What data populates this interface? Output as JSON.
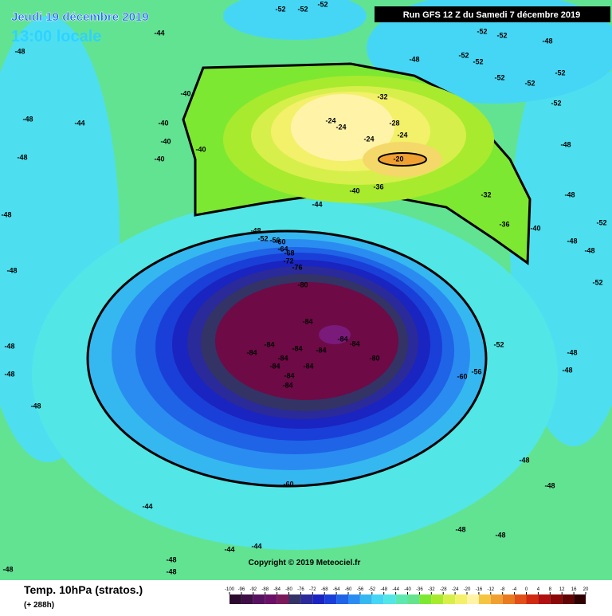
{
  "header": {
    "date": "Jeudi 19 décembre 2019",
    "time": "13:00 locale",
    "run": "Run GFS 12 Z du Samedi 7 décembre 2019"
  },
  "copyright": "Copyright © 2019 Meteociel.fr",
  "footer": {
    "field": "Temp. 10hPa (stratos.)",
    "lead": "(+ 288h)"
  },
  "colorbar": {
    "ticks": [
      -100,
      -96,
      -92,
      -88,
      -84,
      -80,
      -76,
      -72,
      -68,
      -64,
      -60,
      -56,
      -52,
      -48,
      -44,
      -40,
      -36,
      -32,
      -28,
      -24,
      -20,
      -16,
      -12,
      -8,
      -4,
      0,
      4,
      8,
      12,
      16,
      20
    ],
    "colors": [
      "#2b0a2e",
      "#3d0f45",
      "#561260",
      "#6a1068",
      "#7a1a5a",
      "#333366",
      "#2a2a9a",
      "#1a24c0",
      "#1a3fd8",
      "#1f63e6",
      "#2a8cf0",
      "#35b8f0",
      "#46d6f5",
      "#52e6e6",
      "#5de8b0",
      "#66e38e",
      "#7de832",
      "#a8ea2e",
      "#d7ef4a",
      "#f3f06a",
      "#fff3a8",
      "#f5c542",
      "#f0a030",
      "#e87a20",
      "#e05018",
      "#d02a10",
      "#b01010",
      "#8a0808",
      "#600404",
      "#300000"
    ]
  },
  "contour_labels": [
    "-48",
    "-48",
    "-48",
    "-48",
    "-48",
    "-48",
    "-48",
    "-48",
    "-44",
    "-44",
    "-40",
    "-40",
    "-40",
    "-40",
    "-40",
    "-32",
    "-24",
    "-24",
    "-28",
    "-24",
    "-24",
    "-20",
    "-36",
    "-40",
    "-32",
    "-36",
    "-40",
    "-44",
    "-48",
    "-52",
    "-56",
    "-60",
    "-64",
    "-68",
    "-72",
    "-76",
    "-80",
    "-84",
    "-84",
    "-84",
    "-84",
    "-84",
    "-84",
    "-84",
    "-84",
    "-84",
    "-84",
    "-84",
    "-84",
    "-80",
    "-60",
    "-56",
    "-52",
    "-60",
    "-48",
    "-48",
    "-48",
    "-48",
    "-44",
    "-44",
    "-44",
    "-48",
    "-48",
    "-48",
    "-48",
    "-48",
    "-52",
    "-52",
    "-52",
    "-52",
    "-52",
    "-52",
    "-52",
    "-52",
    "-52",
    "-52",
    "-52",
    "-52",
    "-52",
    "-48",
    "-48",
    "-48",
    "-48",
    "-48",
    "-48"
  ]
}
